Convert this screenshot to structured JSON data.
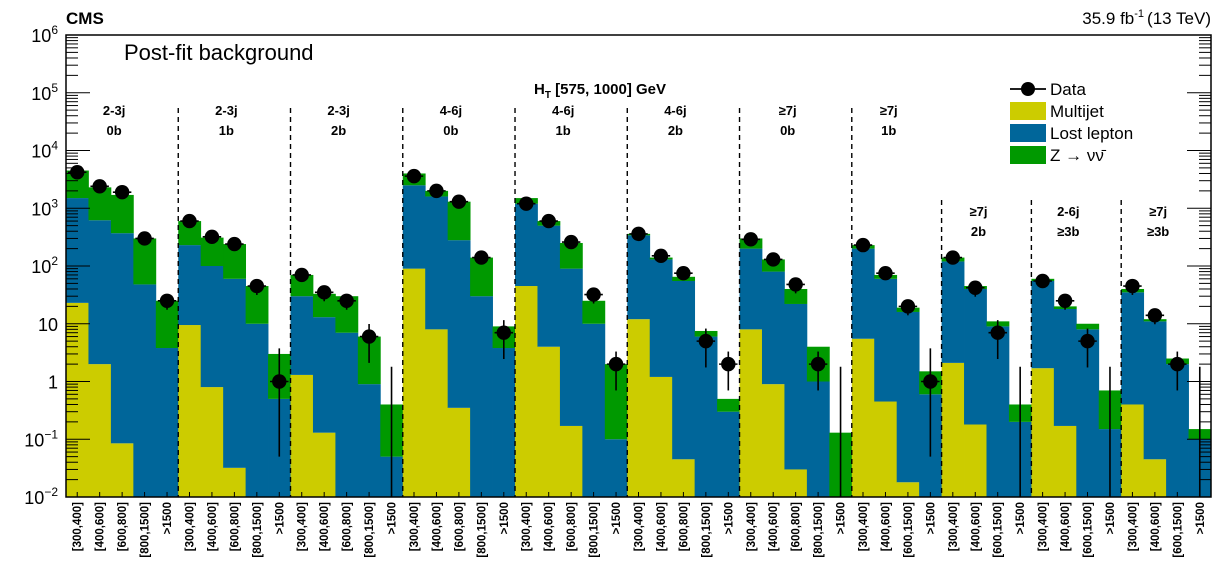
{
  "header": {
    "experiment": "CMS",
    "luminosity": "35.9 fb",
    "lumi_exponent": "-1",
    "energy": "(13 TeV)"
  },
  "plot_label": "Post-fit background",
  "ht_label": {
    "main": "H",
    "sub": "T",
    "rest": " [575, 1000] GeV"
  },
  "colors": {
    "multijet": "#cccc00",
    "lostlepton": "#00669a",
    "znunu": "#009900",
    "data": "#000000"
  },
  "chart_data": {
    "type": "bar",
    "ylog": true,
    "ylim": [
      0.01,
      1000000
    ],
    "y_ticks": [
      {
        "v": 0.01,
        "base": "10",
        "exp": "−2"
      },
      {
        "v": 0.1,
        "base": "10",
        "exp": "−1"
      },
      {
        "v": 1,
        "base": "1",
        "exp": ""
      },
      {
        "v": 10,
        "base": "10",
        "exp": ""
      },
      {
        "v": 100,
        "base": "10",
        "exp": "2"
      },
      {
        "v": 1000,
        "base": "10",
        "exp": "3"
      },
      {
        "v": 10000,
        "base": "10",
        "exp": "4"
      },
      {
        "v": 100000,
        "base": "10",
        "exp": "5"
      },
      {
        "v": 1000000,
        "base": "10",
        "exp": "6"
      }
    ],
    "legend": [
      {
        "key": "data",
        "label": "Data",
        "kind": "marker"
      },
      {
        "key": "multijet",
        "label": "Multijet",
        "kind": "box"
      },
      {
        "key": "lostlepton",
        "label": "Lost lepton",
        "kind": "box"
      },
      {
        "key": "znunu",
        "label": "Z → νν̄",
        "kind": "box"
      }
    ],
    "regions": [
      {
        "njets": "2-3j",
        "nb": "0b",
        "bins": [
          {
            "x": "[300,400]",
            "multijet": 23,
            "lostlepton": 1500,
            "znunu": 4500,
            "data": 4200
          },
          {
            "x": "[400,600]",
            "multijet": 2,
            "lostlepton": 620,
            "znunu": 2300,
            "data": 2400
          },
          {
            "x": "[600,800]",
            "multijet": 0.085,
            "lostlepton": 370,
            "znunu": 1700,
            "data": 1900
          },
          {
            "x": "[800,1500]",
            "multijet": 0,
            "lostlepton": 48,
            "znunu": 300,
            "data": 300
          },
          {
            "x": ">1500",
            "multijet": 0,
            "lostlepton": 3.8,
            "znunu": 25,
            "data": 25
          }
        ]
      },
      {
        "njets": "2-3j",
        "nb": "1b",
        "bins": [
          {
            "x": "[300,400]",
            "multijet": 9.5,
            "lostlepton": 230,
            "znunu": 600,
            "data": 600
          },
          {
            "x": "[400,600]",
            "multijet": 0.8,
            "lostlepton": 100,
            "znunu": 310,
            "data": 320
          },
          {
            "x": "[600,800]",
            "multijet": 0.032,
            "lostlepton": 60,
            "znunu": 240,
            "data": 240
          },
          {
            "x": "[800,1500]",
            "multijet": 0,
            "lostlepton": 10,
            "znunu": 45,
            "data": 45
          },
          {
            "x": ">1500",
            "multijet": 0,
            "lostlepton": 0.5,
            "znunu": 3,
            "data": 1
          }
        ]
      },
      {
        "njets": "2-3j",
        "nb": "2b",
        "bins": [
          {
            "x": "[300,400]",
            "multijet": 1.3,
            "lostlepton": 30,
            "znunu": 70,
            "data": 70
          },
          {
            "x": "[400,600]",
            "multijet": 0.13,
            "lostlepton": 13,
            "znunu": 33,
            "data": 35
          },
          {
            "x": "[600,800]",
            "multijet": 0,
            "lostlepton": 7,
            "znunu": 30,
            "data": 25
          },
          {
            "x": "[800,1500]",
            "multijet": 0,
            "lostlepton": 0.9,
            "znunu": 6,
            "data": 6
          },
          {
            "x": ">1500",
            "multijet": 0,
            "lostlepton": 0.05,
            "znunu": 0.4,
            "data": 0
          }
        ]
      },
      {
        "njets": "4-6j",
        "nb": "0b",
        "bins": [
          {
            "x": "[300,400]",
            "multijet": 90,
            "lostlepton": 2500,
            "znunu": 4000,
            "data": 3600
          },
          {
            "x": "[400,600]",
            "multijet": 8,
            "lostlepton": 1600,
            "znunu": 2000,
            "data": 2000
          },
          {
            "x": "[600,800]",
            "multijet": 0.35,
            "lostlepton": 280,
            "znunu": 1300,
            "data": 1300
          },
          {
            "x": "[800,1500]",
            "multijet": 0,
            "lostlepton": 30,
            "znunu": 140,
            "data": 140
          },
          {
            "x": ">1500",
            "multijet": 0,
            "lostlepton": 3.8,
            "znunu": 9,
            "data": 7
          }
        ]
      },
      {
        "njets": "4-6j",
        "nb": "1b",
        "bins": [
          {
            "x": "[300,400]",
            "multijet": 45,
            "lostlepton": 1200,
            "znunu": 1500,
            "data": 1200
          },
          {
            "x": "[400,600]",
            "multijet": 4,
            "lostlepton": 500,
            "znunu": 600,
            "data": 600
          },
          {
            "x": "[600,800]",
            "multijet": 0.17,
            "lostlepton": 90,
            "znunu": 250,
            "data": 260
          },
          {
            "x": "[800,1500]",
            "multijet": 0,
            "lostlepton": 10,
            "znunu": 25,
            "data": 32
          },
          {
            "x": ">1500",
            "multijet": 0,
            "lostlepton": 0.1,
            "znunu": 2,
            "data": 2
          }
        ]
      },
      {
        "njets": "4-6j",
        "nb": "2b",
        "bins": [
          {
            "x": "[300,400]",
            "multijet": 12,
            "lostlepton": 340,
            "znunu": 360,
            "data": 360
          },
          {
            "x": "[400,600]",
            "multijet": 1.2,
            "lostlepton": 130,
            "znunu": 140,
            "data": 150
          },
          {
            "x": "[600,800]",
            "multijet": 0.045,
            "lostlepton": 55,
            "znunu": 65,
            "data": 75
          },
          {
            "x": "[800,1500]",
            "multijet": 0,
            "lostlepton": 6,
            "znunu": 7.5,
            "data": 5
          },
          {
            "x": ">1500",
            "multijet": 0,
            "lostlepton": 0.3,
            "znunu": 0.5,
            "data": 2
          }
        ]
      },
      {
        "njets": "≥7j",
        "nb": "0b",
        "bins": [
          {
            "x": "[300,400]",
            "multijet": 8,
            "lostlepton": 200,
            "znunu": 300,
            "data": 290
          },
          {
            "x": "[400,600]",
            "multijet": 0.9,
            "lostlepton": 80,
            "znunu": 130,
            "data": 130
          },
          {
            "x": "[600,800]",
            "multijet": 0.03,
            "lostlepton": 22,
            "znunu": 40,
            "data": 48
          },
          {
            "x": "[800,1500]",
            "multijet": 0,
            "lostlepton": 1,
            "znunu": 4,
            "data": 2
          },
          {
            "x": ">1500",
            "multijet": 0,
            "lostlepton": 0,
            "znunu": 0.13,
            "data": 0
          }
        ]
      },
      {
        "njets": "≥7j",
        "nb": "1b",
        "bins": [
          {
            "x": "[300,400]",
            "multijet": 5.5,
            "lostlepton": 200,
            "znunu": 230,
            "data": 230
          },
          {
            "x": "[400,600]",
            "multijet": 0.45,
            "lostlepton": 60,
            "znunu": 70,
            "data": 75
          },
          {
            "x": "[600,1500]",
            "multijet": 0.018,
            "lostlepton": 16,
            "znunu": 19,
            "data": 20
          },
          {
            "x": ">1500",
            "multijet": 0,
            "lostlepton": 0.6,
            "znunu": 1.5,
            "data": 1
          }
        ]
      },
      {
        "njets": "≥7j",
        "nb": "2b",
        "bins": [
          {
            "x": "[300,400]",
            "multijet": 2.1,
            "lostlepton": 120,
            "znunu": 140,
            "data": 140
          },
          {
            "x": "[400,600]",
            "multijet": 0.18,
            "lostlepton": 40,
            "znunu": 45,
            "data": 42
          },
          {
            "x": "[600,1500]",
            "multijet": 0,
            "lostlepton": 9,
            "znunu": 11,
            "data": 7
          },
          {
            "x": ">1500",
            "multijet": 0,
            "lostlepton": 0.2,
            "znunu": 0.4,
            "data": 0
          }
        ]
      },
      {
        "njets": "2-6j",
        "nb": "≥3b",
        "bins": [
          {
            "x": "[300,400]",
            "multijet": 1.7,
            "lostlepton": 55,
            "znunu": 60,
            "data": 55
          },
          {
            "x": "[400,600]",
            "multijet": 0.17,
            "lostlepton": 18,
            "znunu": 20,
            "data": 25
          },
          {
            "x": "[600,1500]",
            "multijet": 0,
            "lostlepton": 8,
            "znunu": 10,
            "data": 5
          },
          {
            "x": ">1500",
            "multijet": 0,
            "lostlepton": 0.15,
            "znunu": 0.7,
            "data": 0
          }
        ]
      },
      {
        "njets": "≥7j",
        "nb": "≥3b",
        "bins": [
          {
            "x": "[300,400]",
            "multijet": 0.4,
            "lostlepton": 35,
            "znunu": 40,
            "data": 45
          },
          {
            "x": "[400,600]",
            "multijet": 0.045,
            "lostlepton": 11,
            "znunu": 12,
            "data": 14
          },
          {
            "x": "[600,1500]",
            "multijet": 0,
            "lostlepton": 2,
            "znunu": 2.5,
            "data": 2
          },
          {
            "x": ">1500",
            "multijet": 0,
            "lostlepton": 0.1,
            "znunu": 0.15,
            "data": 0
          }
        ]
      }
    ]
  }
}
